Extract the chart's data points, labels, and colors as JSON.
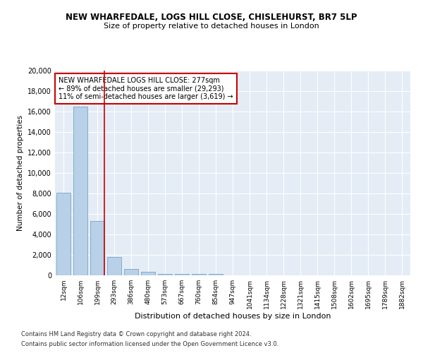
{
  "title": "NEW WHARFEDALE, LOGS HILL CLOSE, CHISLEHURST, BR7 5LP",
  "subtitle": "Size of property relative to detached houses in London",
  "xlabel": "Distribution of detached houses by size in London",
  "ylabel": "Number of detached properties",
  "bar_color": "#b8d0e8",
  "bar_edge_color": "#6699bb",
  "background_color": "#e4edf5",
  "grid_color": "#ffffff",
  "categories": [
    "12sqm",
    "106sqm",
    "199sqm",
    "293sqm",
    "386sqm",
    "480sqm",
    "573sqm",
    "667sqm",
    "760sqm",
    "854sqm",
    "947sqm",
    "1041sqm",
    "1134sqm",
    "1228sqm",
    "1321sqm",
    "1415sqm",
    "1508sqm",
    "1602sqm",
    "1695sqm",
    "1789sqm",
    "1882sqm"
  ],
  "values": [
    8100,
    16500,
    5300,
    1800,
    650,
    320,
    170,
    130,
    110,
    110,
    0,
    0,
    0,
    0,
    0,
    0,
    0,
    0,
    0,
    0,
    0
  ],
  "annotation_text": "NEW WHARFEDALE LOGS HILL CLOSE: 277sqm\n← 89% of detached houses are smaller (29,293)\n11% of semi-detached houses are larger (3,619) →",
  "annotation_box_color": "#ffffff",
  "annotation_border_color": "#cc0000",
  "property_line_color": "#cc0000",
  "footnote_line1": "Contains HM Land Registry data © Crown copyright and database right 2024.",
  "footnote_line2": "Contains public sector information licensed under the Open Government Licence v3.0.",
  "ylim": [
    0,
    20000
  ],
  "yticks": [
    0,
    2000,
    4000,
    6000,
    8000,
    10000,
    12000,
    14000,
    16000,
    18000,
    20000
  ],
  "red_line_x": 2.43
}
